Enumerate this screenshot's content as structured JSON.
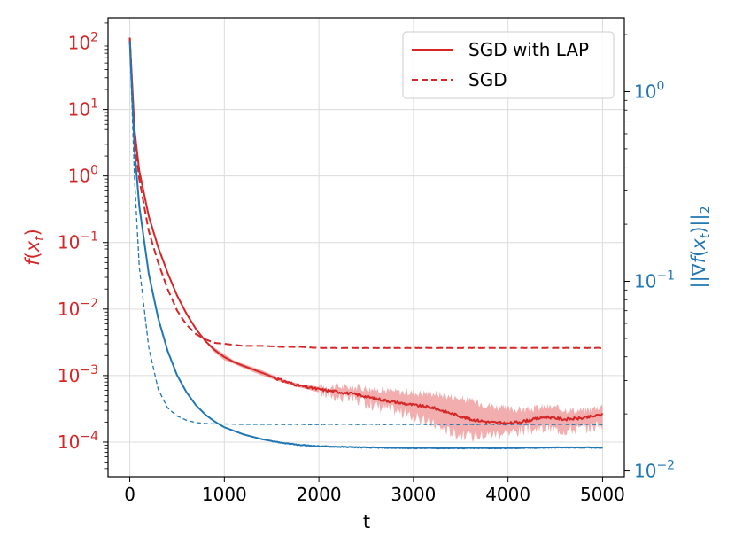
{
  "chart_data": {
    "type": "line",
    "title": "",
    "xlabel": "t",
    "ylabel_left": "f(x_t)",
    "ylabel_right": "||∇f(x_t)||_2",
    "xlim": [
      -230,
      5230
    ],
    "xticks": [
      0,
      1000,
      2000,
      3000,
      4000,
      5000
    ],
    "y_left_scale": "log",
    "y_left_lim_exp": [
      -4.52,
      2.38
    ],
    "y_left_ticks": [
      {
        "base": "10",
        "exp": "2"
      },
      {
        "base": "10",
        "exp": "1"
      },
      {
        "base": "10",
        "exp": "0"
      },
      {
        "base": "10",
        "exp": "−1"
      },
      {
        "base": "10",
        "exp": "−2"
      },
      {
        "base": "10",
        "exp": "−3"
      },
      {
        "base": "10",
        "exp": "−4"
      }
    ],
    "y_left_tick_exps": [
      2,
      1,
      0,
      -1,
      -2,
      -3,
      -4
    ],
    "y_right_scale": "log",
    "y_right_lim_exp": [
      -2.03,
      0.39
    ],
    "y_right_ticks": [
      {
        "base": "10",
        "exp": "0"
      },
      {
        "base": "10",
        "exp": "−1"
      },
      {
        "base": "10",
        "exp": "−2"
      }
    ],
    "y_right_tick_exps": [
      0,
      -1,
      -2
    ],
    "grid": true,
    "legend_position": "top-right",
    "legend": [
      {
        "label": "SGD with LAP",
        "style": "solid",
        "color": "#d62728"
      },
      {
        "label": "SGD",
        "style": "dashed",
        "color": "#d62728"
      }
    ],
    "colors": {
      "left_axis": "#d62728",
      "right_axis": "#1f77b4",
      "band": "#f0a0a0"
    },
    "series": [
      {
        "name": "SGD with LAP f(x_t)",
        "axis": "left",
        "style": "solid",
        "color": "#d62728",
        "x": [
          0,
          50,
          100,
          200,
          300,
          400,
          500,
          600,
          700,
          800,
          900,
          1000,
          1100,
          1200,
          1400,
          1600,
          1800,
          2000,
          2200,
          2400,
          2600,
          2800,
          3000,
          3200,
          3400,
          3600,
          3800,
          4000,
          4200,
          4400,
          4600,
          4800,
          5000
        ],
        "y": [
          120,
          5,
          1.2,
          0.25,
          0.085,
          0.035,
          0.016,
          0.0085,
          0.005,
          0.0033,
          0.0024,
          0.0019,
          0.0016,
          0.0014,
          0.0011,
          0.00085,
          0.0007,
          0.00062,
          0.00057,
          0.00052,
          0.00045,
          0.0004,
          0.00036,
          0.00033,
          0.00027,
          0.00022,
          0.0002,
          0.00019,
          0.00021,
          0.00024,
          0.00022,
          0.00023,
          0.00026
        ],
        "band_upper": [
          120,
          5,
          1.2,
          0.25,
          0.085,
          0.035,
          0.016,
          0.0085,
          0.005,
          0.0034,
          0.0026,
          0.0021,
          0.0017,
          0.0015,
          0.0012,
          0.0009,
          0.00074,
          0.00068,
          0.00068,
          0.00067,
          0.00062,
          0.00058,
          0.00055,
          0.00055,
          0.00048,
          0.00042,
          0.00036,
          0.00031,
          0.00031,
          0.00034,
          0.00031,
          0.0003,
          0.00035
        ],
        "band_lower": [
          120,
          5,
          1.2,
          0.25,
          0.085,
          0.035,
          0.016,
          0.0085,
          0.005,
          0.0032,
          0.0022,
          0.0017,
          0.0015,
          0.0013,
          0.001,
          0.0008,
          0.00066,
          0.00056,
          0.00048,
          0.00042,
          0.00035,
          0.0003,
          0.00024,
          0.00019,
          0.00014,
          0.00012,
          0.00013,
          0.00014,
          0.00015,
          0.00016,
          0.00015,
          0.00016,
          0.00018
        ]
      },
      {
        "name": "SGD f(x_t)",
        "axis": "left",
        "style": "dashed",
        "color": "#d62728",
        "x": [
          0,
          50,
          100,
          200,
          300,
          400,
          500,
          600,
          700,
          800,
          900,
          1000,
          1100,
          1200,
          1400,
          1600,
          1800,
          2000,
          2500,
          3000,
          3500,
          4000,
          4500,
          5000
        ],
        "y": [
          120,
          4,
          0.9,
          0.15,
          0.05,
          0.02,
          0.0095,
          0.0058,
          0.0042,
          0.0035,
          0.0031,
          0.003,
          0.0029,
          0.0028,
          0.0028,
          0.0027,
          0.0027,
          0.0026,
          0.0026,
          0.0026,
          0.0026,
          0.0026,
          0.0026,
          0.0026
        ]
      },
      {
        "name": "SGD with LAP ||∇f(x_t)||_2",
        "axis": "right",
        "style": "solid",
        "color": "#1f77b4",
        "x": [
          0,
          50,
          100,
          200,
          300,
          400,
          500,
          600,
          700,
          800,
          900,
          1000,
          1200,
          1400,
          1600,
          1800,
          2000,
          2500,
          3000,
          3500,
          4000,
          4500,
          5000
        ],
        "y": [
          1.85,
          0.5,
          0.25,
          0.11,
          0.064,
          0.043,
          0.032,
          0.026,
          0.0222,
          0.0198,
          0.0182,
          0.017,
          0.0156,
          0.0147,
          0.0141,
          0.0137,
          0.0135,
          0.0133,
          0.0132,
          0.0132,
          0.0132,
          0.0133,
          0.0133
        ]
      },
      {
        "name": "SGD ||∇f(x_t)||_2",
        "axis": "right",
        "style": "dashed",
        "color": "#1f77b4",
        "x": [
          0,
          50,
          100,
          200,
          300,
          400,
          500,
          600,
          700,
          800,
          900,
          1000,
          1200,
          1500,
          2000,
          2500,
          3000,
          3500,
          4000,
          4500,
          5000
        ],
        "y": [
          1.85,
          0.35,
          0.12,
          0.045,
          0.027,
          0.0215,
          0.0195,
          0.0185,
          0.018,
          0.0178,
          0.0177,
          0.0177,
          0.0176,
          0.0176,
          0.0176,
          0.0176,
          0.0176,
          0.0176,
          0.0176,
          0.0176,
          0.0176
        ]
      }
    ]
  }
}
